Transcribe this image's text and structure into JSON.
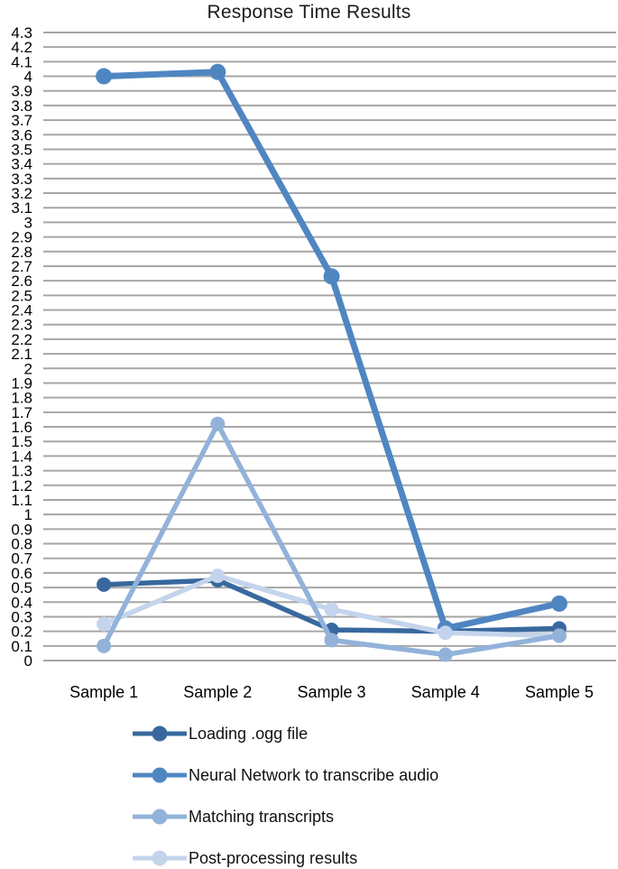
{
  "chart_data": {
    "type": "line",
    "title": "Response Time Results",
    "categories": [
      "Sample 1",
      "Sample 2",
      "Sample 3",
      "Sample 4",
      "Sample 5"
    ],
    "series": [
      {
        "name": "Loading .ogg file",
        "color": "#38689e",
        "values": [
          0.52,
          0.55,
          0.21,
          0.2,
          0.22
        ]
      },
      {
        "name": "Neural Network to transcribe audio",
        "color": "#4f86c2",
        "values": [
          4.0,
          4.03,
          2.63,
          0.22,
          0.39
        ]
      },
      {
        "name": "Matching transcripts",
        "color": "#92b2da",
        "values": [
          0.1,
          1.62,
          0.14,
          0.04,
          0.17
        ]
      },
      {
        "name": "Post-processing results",
        "color": "#c4d4ec",
        "values": [
          0.25,
          0.58,
          0.35,
          0.19,
          0.17
        ]
      }
    ],
    "ylim": [
      0,
      4.3
    ],
    "ytick_step": 0.1,
    "grid": true,
    "gridline_color": "#a6a6a6",
    "tick_label_color": "#000000",
    "legend_position": "bottom-left",
    "xlabel": "",
    "ylabel": ""
  }
}
